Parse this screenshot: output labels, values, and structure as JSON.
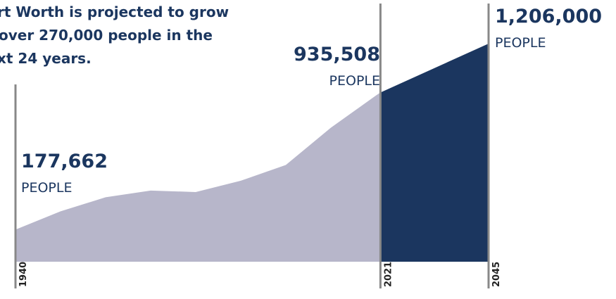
{
  "chart_data": {
    "type": "area",
    "title_lines": [
      "rt Worth is projected to grow",
      "over 270,000 people in the",
      "xt 24 years."
    ],
    "series": [
      {
        "color": "#b7b6ca",
        "x": [
          1940,
          1950,
          1960,
          1970,
          1980,
          1990,
          2000,
          2010,
          2020,
          2021
        ],
        "values": [
          177662,
          278778,
          356268,
          393476,
          385164,
          447619,
          534694,
          741206,
          918915,
          935508
        ]
      },
      {
        "color": "#1b365f",
        "x": [
          2021,
          2045
        ],
        "values": [
          935508,
          1206000
        ]
      }
    ],
    "xlim": [
      1940,
      2045
    ],
    "ylim": [
      0,
      1447000
    ],
    "xticks": [
      1940,
      2021,
      2045
    ],
    "annotations": [
      {
        "x": 1940,
        "value": 177662,
        "label": "177,662",
        "unit": "PEOPLE"
      },
      {
        "x": 2021,
        "value": 935508,
        "label": "935,508",
        "unit": "PEOPLE"
      },
      {
        "x": 2045,
        "value": 1206000,
        "label": "1,206,000",
        "unit": "PEOPLE"
      }
    ]
  }
}
